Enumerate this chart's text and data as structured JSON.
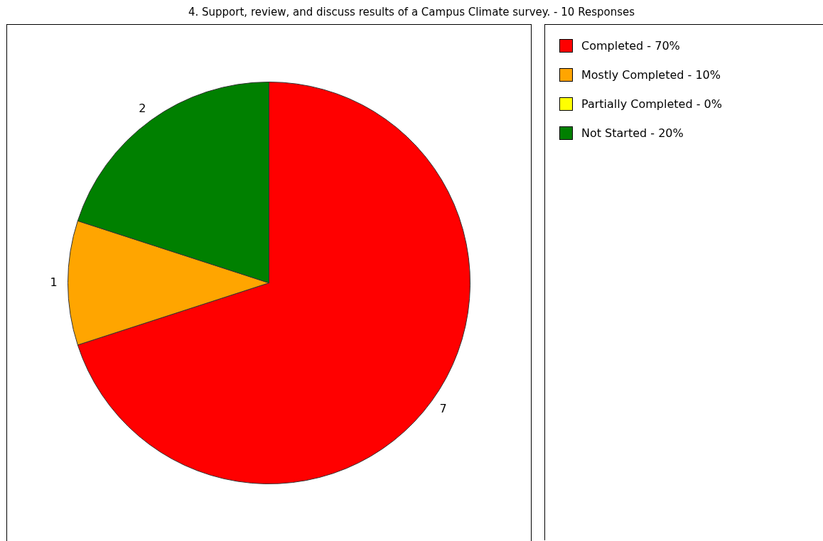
{
  "chart_data": {
    "type": "pie",
    "title": "4. Support, review, and discuss results of a Campus Climate survey. - 10 Responses",
    "categories": [
      "Completed - 70%",
      "Mostly Completed - 10%",
      "Partially Completed - 0%",
      "Not Started - 20%"
    ],
    "values": [
      7,
      1,
      0,
      2
    ],
    "colors": [
      "#ff0000",
      "#ffa500",
      "#ffff00",
      "#008000"
    ],
    "value_labels": [
      "7",
      "1",
      null,
      "2"
    ],
    "legend": "right"
  }
}
